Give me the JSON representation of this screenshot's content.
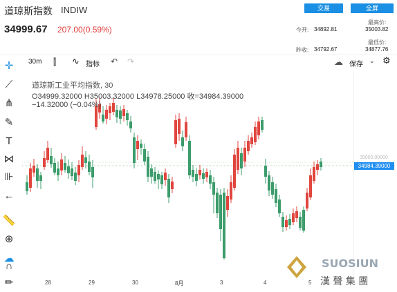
{
  "header": {
    "title": "道琼斯指数",
    "code": "INDIW",
    "trade_button": "交易",
    "fullscreen_button": "全屏",
    "price": "34999.67",
    "change": "207.00(0.59%)",
    "open_label": "今开:",
    "open_value": "34892.81",
    "high_label": "最高价:",
    "high_value": "35003.82",
    "prev_close_label": "昨收:",
    "prev_close_value": "34792.67",
    "low_label": "最低价:",
    "low_value": "34877.76"
  },
  "toolbar": {
    "interval": "30m",
    "indicators": "指标",
    "save": "保存"
  },
  "legend": {
    "name": "道琼斯工业平均指数, 30",
    "ohlc": "O34999.32000  H35003.32000  L34978.25000  收=34984.39000",
    "delta": "−14.32000 (−0.04%)"
  },
  "axis": {
    "x_ticks": [
      "28",
      "29",
      "30",
      "8月",
      "3",
      "4",
      "5"
    ],
    "right_tick": "35000.00000",
    "current_price_tag": "34984.39000"
  },
  "watermark": {
    "brand": "SUOSIUN",
    "cn": "漢 聲 集 團"
  },
  "colors": {
    "up": "#e0463e",
    "down": "#3c9c6b",
    "accent": "#1a8fe3"
  },
  "chart_data": {
    "type": "candlestick",
    "title": "道琼斯工业平均指数, 30",
    "xlabel": "",
    "ylabel": "",
    "categories": [
      "28",
      "29",
      "30",
      "8月",
      "3",
      "4",
      "5"
    ],
    "last_close": 34984.39,
    "open": 34999.32,
    "high": 35003.32,
    "low": 34978.25
  }
}
